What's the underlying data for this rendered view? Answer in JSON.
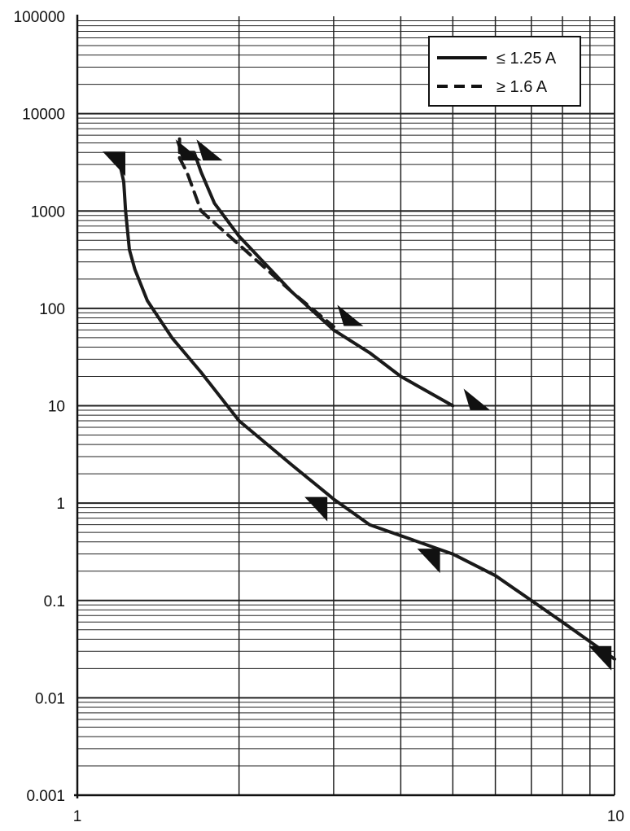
{
  "chart_data": {
    "type": "line",
    "title": "",
    "xlabel": "",
    "ylabel": "",
    "x_scale": "log",
    "y_scale": "log",
    "xlim": [
      1,
      10
    ],
    "ylim": [
      0.001,
      100000
    ],
    "grid": true,
    "legend_position": "top-right",
    "x_tick_labels": [
      {
        "value": 1,
        "label": "1"
      },
      {
        "value": 10,
        "label": "10"
      }
    ],
    "y_tick_labels": [
      {
        "value": 0.001,
        "label": "0.001"
      },
      {
        "value": 0.01,
        "label": "0.01"
      },
      {
        "value": 0.1,
        "label": "0.1"
      },
      {
        "value": 1,
        "label": "1"
      },
      {
        "value": 10,
        "label": "10"
      },
      {
        "value": 100,
        "label": "100"
      },
      {
        "value": 1000,
        "label": "1000"
      },
      {
        "value": 10000,
        "label": "10000"
      },
      {
        "value": 100000,
        "label": "100000"
      }
    ],
    "legend": [
      {
        "label": "≤ 1.25 A",
        "style": "solid"
      },
      {
        "label": "≥ 1.6 A",
        "style": "dashed"
      }
    ],
    "series": [
      {
        "name": "≤ 1.25 A",
        "style": "solid",
        "color": "#1a1a1a",
        "points": [
          [
            1.2,
            3000
          ],
          [
            1.22,
            2000
          ],
          [
            1.23,
            1000
          ],
          [
            1.25,
            400
          ],
          [
            1.28,
            250
          ],
          [
            1.35,
            120
          ],
          [
            1.5,
            50
          ],
          [
            1.7,
            22
          ],
          [
            2.0,
            7
          ],
          [
            2.5,
            2.5
          ],
          [
            3.0,
            1.1
          ],
          [
            3.5,
            0.6
          ],
          [
            5.0,
            0.3
          ],
          [
            6.0,
            0.18
          ],
          [
            8.0,
            0.06
          ],
          [
            10.0,
            0.025
          ]
        ]
      },
      {
        "name": "≤ 1.25 A",
        "style": "solid",
        "color": "#1a1a1a",
        "points": [
          [
            1.55,
            4000
          ],
          [
            1.65,
            4000
          ],
          [
            1.7,
            2500
          ],
          [
            1.8,
            1200
          ],
          [
            2.0,
            550
          ],
          [
            2.5,
            150
          ],
          [
            3.0,
            60
          ],
          [
            3.5,
            35
          ],
          [
            4.0,
            20
          ],
          [
            5.0,
            10
          ]
        ]
      },
      {
        "name": "≥ 1.6 A",
        "style": "dashed",
        "color": "#1a1a1a",
        "points": [
          [
            1.55,
            5500
          ],
          [
            1.55,
            3500
          ],
          [
            1.6,
            2500
          ],
          [
            1.7,
            1000
          ],
          [
            2.0,
            450
          ],
          [
            2.5,
            150
          ],
          [
            3.0,
            65
          ]
        ]
      }
    ],
    "markers": [
      {
        "x": 1.22,
        "y": 3000,
        "shape": "down-right"
      },
      {
        "x": 1.6,
        "y": 4000,
        "shape": "right"
      },
      {
        "x": 1.75,
        "y": 4000,
        "shape": "right"
      },
      {
        "x": 3.2,
        "y": 80,
        "shape": "right"
      },
      {
        "x": 5.5,
        "y": 11,
        "shape": "right"
      },
      {
        "x": 2.9,
        "y": 0.85,
        "shape": "down-right"
      },
      {
        "x": 4.7,
        "y": 0.25,
        "shape": "down-right"
      },
      {
        "x": 9.8,
        "y": 0.025,
        "shape": "down-right"
      }
    ]
  }
}
